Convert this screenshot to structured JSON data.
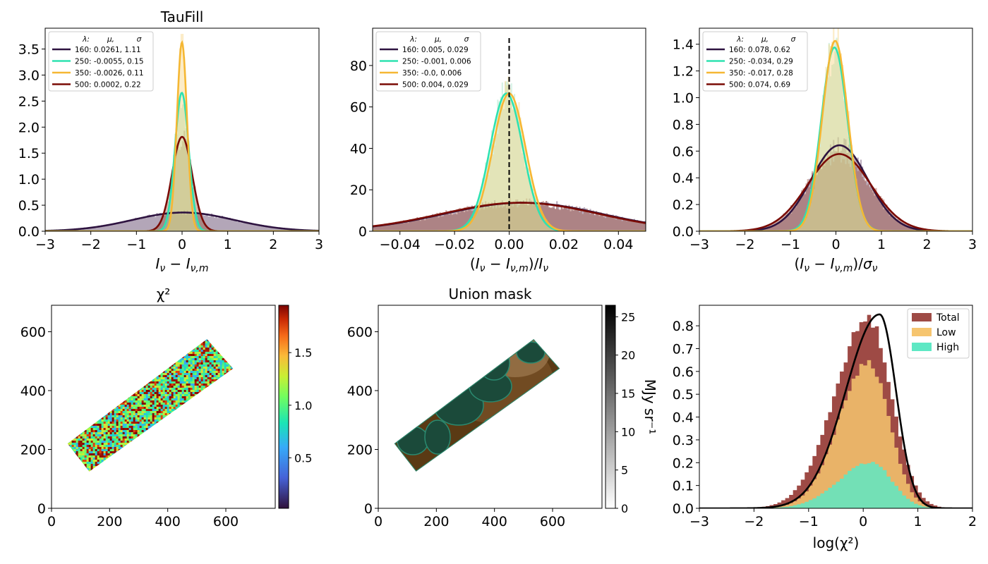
{
  "chart_data": [
    {
      "type": "histogram",
      "title": "TauFill",
      "xlabel": "I_ν − I_ν,m",
      "xlim": [
        -3,
        3
      ],
      "ylim": [
        0,
        3.9
      ],
      "xticks": [
        "−3",
        "−2",
        "−1",
        "0",
        "1",
        "2",
        "3"
      ],
      "yticks": [
        "0.0",
        "0.5",
        "1.0",
        "1.5",
        "2.0",
        "2.5",
        "3.0",
        "3.5"
      ],
      "legend_header": [
        "λ:",
        "μ,",
        "σ"
      ],
      "legend_position": "upper-left",
      "series": [
        {
          "name": "160: 0.0261,  1.11",
          "band": 160,
          "mu": 0.0261,
          "sigma": 1.11,
          "color": "#2e1340",
          "fill": "#4a2a55"
        },
        {
          "name": "250: -0.0055,  0.15",
          "band": 250,
          "mu": -0.0055,
          "sigma": 0.15,
          "color": "#2ee2b0",
          "fill": "#8fe0b8"
        },
        {
          "name": "350: -0.0026,  0.11",
          "band": 350,
          "mu": -0.0026,
          "sigma": 0.11,
          "color": "#f5b733",
          "fill": "#f8d27a"
        },
        {
          "name": "500: 0.0002,  0.22",
          "band": 500,
          "mu": 0.0002,
          "sigma": 0.22,
          "color": "#7a0b05",
          "fill": "#9c5a3a"
        }
      ]
    },
    {
      "type": "histogram",
      "title": "",
      "xlabel": "(I_ν − I_ν,m)/I_ν",
      "xlim": [
        -0.05,
        0.05
      ],
      "ylim": [
        0,
        98
      ],
      "xticks": [
        "−0.04",
        "−0.02",
        "0.00",
        "0.02",
        "0.04"
      ],
      "yticks": [
        "0",
        "20",
        "40",
        "60",
        "80"
      ],
      "vline_x": 0,
      "legend_header": [
        "λ:",
        "μ,",
        "σ"
      ],
      "legend_position": "upper-left",
      "series": [
        {
          "name": "160: 0.005,  0.029",
          "band": 160,
          "mu": 0.005,
          "sigma": 0.029,
          "color": "#2e1340",
          "fill": "#5a3a60"
        },
        {
          "name": "250: -0.001,  0.006",
          "band": 250,
          "mu": -0.001,
          "sigma": 0.006,
          "color": "#2ee2b0",
          "fill": "#9be0c0"
        },
        {
          "name": "350: -0.0,  0.006",
          "band": 350,
          "mu": 0.0,
          "sigma": 0.006,
          "color": "#f5b733",
          "fill": "#f8d27a"
        },
        {
          "name": "500: 0.004,  0.029",
          "band": 500,
          "mu": 0.004,
          "sigma": 0.029,
          "color": "#7a0b05",
          "fill": "#9c4a3a"
        }
      ]
    },
    {
      "type": "histogram",
      "title": "",
      "xlabel": "(I_ν − I_ν,m)/σ_ν",
      "xlim": [
        -3,
        3
      ],
      "ylim": [
        0,
        1.52
      ],
      "xticks": [
        "−3",
        "−2",
        "−1",
        "0",
        "1",
        "2",
        "3"
      ],
      "yticks": [
        "0.0",
        "0.2",
        "0.4",
        "0.6",
        "0.8",
        "1.0",
        "1.2",
        "1.4"
      ],
      "legend_header": [
        "λ:",
        "μ,",
        "σ"
      ],
      "legend_position": "upper-left",
      "series": [
        {
          "name": "160: 0.078,  0.62",
          "band": 160,
          "mu": 0.078,
          "sigma": 0.62,
          "color": "#2e1340",
          "fill": "#5a3a60"
        },
        {
          "name": "250: -0.034,  0.29",
          "band": 250,
          "mu": -0.034,
          "sigma": 0.29,
          "color": "#2ee2b0",
          "fill": "#9be0c0"
        },
        {
          "name": "350: -0.017,  0.28",
          "band": 350,
          "mu": -0.017,
          "sigma": 0.28,
          "color": "#f5b733",
          "fill": "#f8d27a"
        },
        {
          "name": "500: 0.074,  0.69",
          "band": 500,
          "mu": 0.074,
          "sigma": 0.69,
          "color": "#7a0b05",
          "fill": "#9c4a3a"
        }
      ]
    },
    {
      "type": "heatmap",
      "title": "χ²",
      "xlim": [
        0,
        770
      ],
      "ylim": [
        0,
        690
      ],
      "xticks": [
        "0",
        "200",
        "400",
        "600"
      ],
      "yticks": [
        "0",
        "200",
        "400",
        "600"
      ],
      "region_corners": [
        [
          55,
          220
        ],
        [
          130,
          125
        ],
        [
          625,
          475
        ],
        [
          535,
          575
        ]
      ],
      "colorbar": {
        "range": [
          0.02,
          1.95
        ],
        "ticks": [
          "0.5",
          "1.0",
          "1.5"
        ],
        "tick_values": [
          0.5,
          1.0,
          1.5
        ],
        "colormap": "turbo"
      }
    },
    {
      "type": "heatmap",
      "title": "Union mask",
      "xlim": [
        0,
        770
      ],
      "ylim": [
        0,
        690
      ],
      "xticks": [
        "0",
        "200",
        "400",
        "600"
      ],
      "yticks": [
        "0",
        "200",
        "400",
        "600"
      ],
      "region_corners": [
        [
          55,
          220
        ],
        [
          130,
          125
        ],
        [
          625,
          475
        ],
        [
          535,
          575
        ]
      ],
      "colorbar": {
        "label": "MJy sr⁻¹",
        "range": [
          0,
          26.5
        ],
        "ticks": [
          "0",
          "5",
          "10",
          "15",
          "20",
          "25"
        ],
        "tick_values": [
          0,
          5,
          10,
          15,
          20,
          25
        ],
        "colormap": "gray_r"
      }
    },
    {
      "type": "histogram",
      "title": "",
      "xlabel": "log(χ²)",
      "xlim": [
        -3,
        2
      ],
      "ylim": [
        0,
        0.89
      ],
      "xticks": [
        "−3",
        "−2",
        "−1",
        "0",
        "1",
        "2"
      ],
      "yticks": [
        "0.0",
        "0.1",
        "0.2",
        "0.3",
        "0.4",
        "0.5",
        "0.6",
        "0.7",
        "0.8"
      ],
      "legend_position": "upper-right",
      "series": [
        {
          "name": "Total",
          "color": "#9e4a45",
          "peak_x": 0.1,
          "peak_y": 0.83
        },
        {
          "name": "Low",
          "color": "#f6c56f",
          "peak_x": 0.1,
          "peak_y": 0.64
        },
        {
          "name": "High",
          "color": "#5ee8c4",
          "peak_x": 0.15,
          "peak_y": 0.2
        }
      ],
      "curve": {
        "color": "#000000",
        "peak_x": 0.3,
        "peak_y": 0.85
      }
    }
  ]
}
